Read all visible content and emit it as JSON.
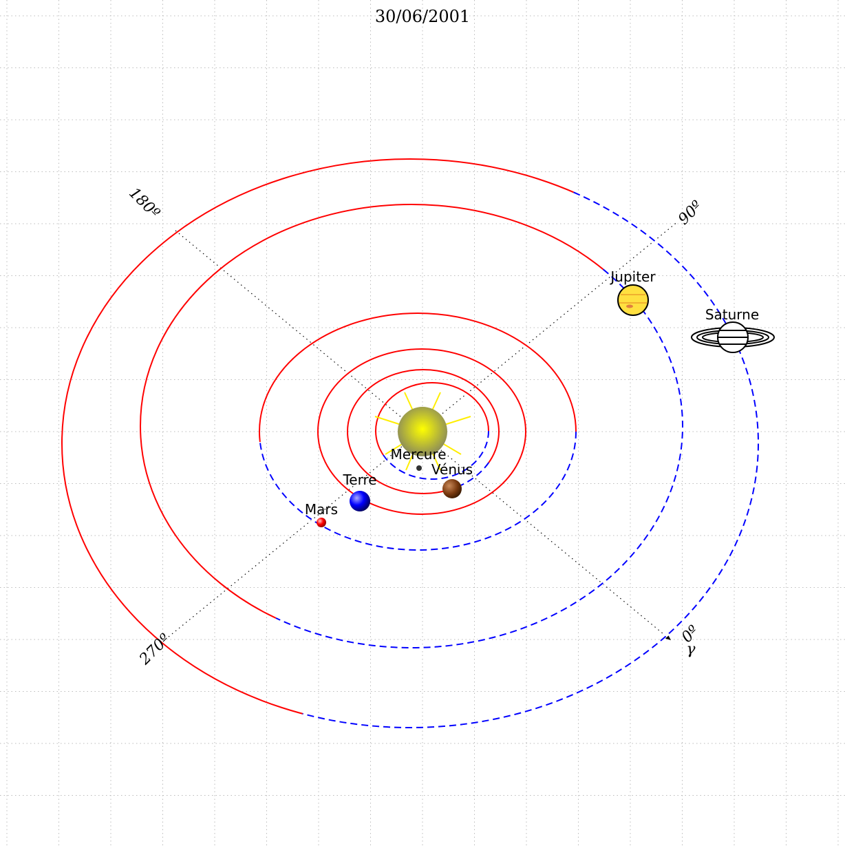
{
  "title": "30/06/2001",
  "axes": {
    "angle_0": "0º",
    "angle_90": "90º",
    "angle_180": "180º",
    "angle_270": "270º",
    "vernal_point": "γ"
  },
  "planets": [
    "Mercure",
    "Vénus",
    "Terre",
    "Mars",
    "Jupiter",
    "Saturne"
  ]
}
